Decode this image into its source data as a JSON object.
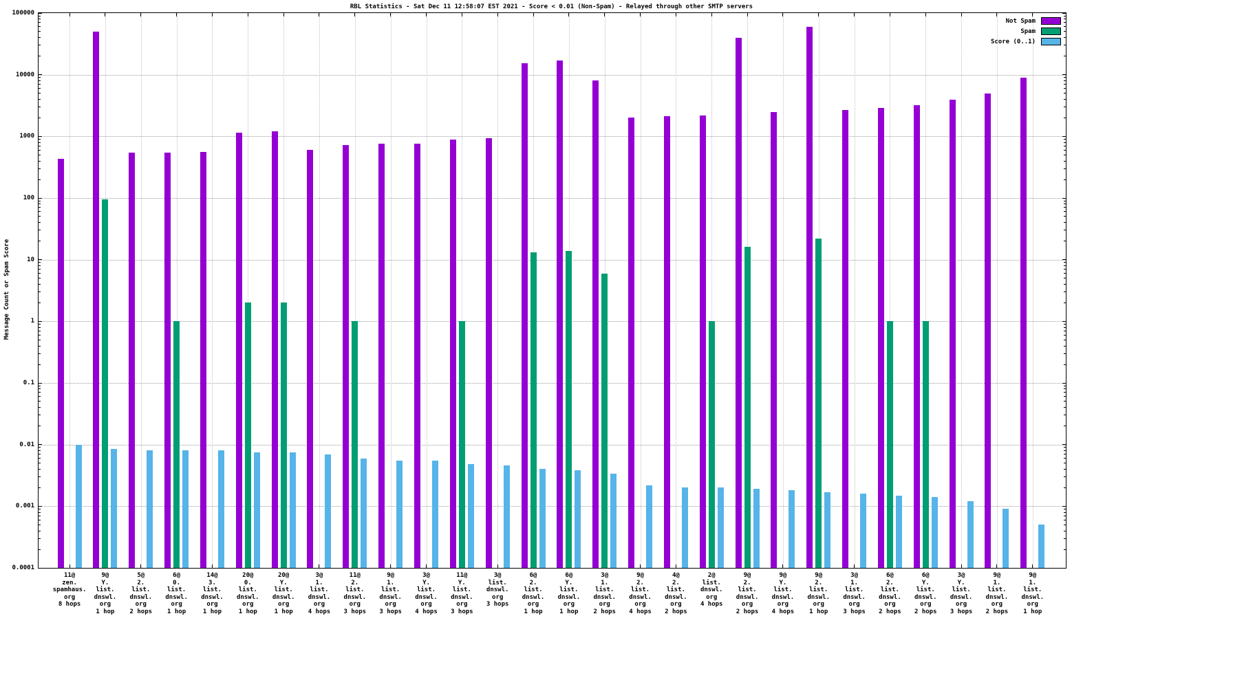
{
  "chart_data": {
    "type": "bar",
    "title": "RBL Statistics - Sat Dec 11 12:58:07 EST 2021 - Score < 0.01 (Non-Spam) - Relayed through other SMTP servers",
    "ylabel": "Message Count or Spam Score",
    "y_scale": "log",
    "ylim": [
      0.0001,
      100000
    ],
    "y_ticks": [
      "100000",
      "10000",
      "1000",
      "100",
      "10",
      "1",
      "0.1",
      "0.01",
      "0.001",
      "0.0001"
    ],
    "grid": true,
    "legend_position": "top-right",
    "legend": [
      {
        "label": "Not Spam",
        "color": "#9400D3"
      },
      {
        "label": "Spam",
        "color": "#009E73"
      },
      {
        "label": "Score (0..1)",
        "color": "#56B4E9"
      }
    ],
    "categories": [
      [
        "11@",
        "zen.",
        "spamhaus.",
        "org",
        "8 hops"
      ],
      [
        "9@",
        "Y.",
        "list.",
        "dnswl.",
        "org",
        "1 hop"
      ],
      [
        "5@",
        "2.",
        "list.",
        "dnswl.",
        "org",
        "2 hops"
      ],
      [
        "6@",
        "0.",
        "list.",
        "dnswl.",
        "org",
        "1 hop"
      ],
      [
        "14@",
        "3.",
        "list.",
        "dnswl.",
        "org",
        "1 hop"
      ],
      [
        "20@",
        "0.",
        "list.",
        "dnswl.",
        "org",
        "1 hop"
      ],
      [
        "20@",
        "Y.",
        "list.",
        "dnswl.",
        "org",
        "1 hop"
      ],
      [
        "3@",
        "1.",
        "list.",
        "dnswl.",
        "org",
        "4 hops"
      ],
      [
        "11@",
        "2.",
        "list.",
        "dnswl.",
        "org",
        "3 hops"
      ],
      [
        "9@",
        "1.",
        "list.",
        "dnswl.",
        "org",
        "3 hops"
      ],
      [
        "3@",
        "Y.",
        "list.",
        "dnswl.",
        "org",
        "4 hops"
      ],
      [
        "11@",
        "Y.",
        "list.",
        "dnswl.",
        "org",
        "3 hops"
      ],
      [
        "3@",
        "list.",
        "dnswl.",
        "org",
        "3 hops"
      ],
      [
        "6@",
        "2.",
        "list.",
        "dnswl.",
        "org",
        "1 hop"
      ],
      [
        "6@",
        "Y.",
        "list.",
        "dnswl.",
        "org",
        "1 hop"
      ],
      [
        "3@",
        "1.",
        "list.",
        "dnswl.",
        "org",
        "2 hops"
      ],
      [
        "9@",
        "2.",
        "list.",
        "dnswl.",
        "org",
        "4 hops"
      ],
      [
        "4@",
        "2.",
        "list.",
        "dnswl.",
        "org",
        "2 hops"
      ],
      [
        "2@",
        "list.",
        "dnswl.",
        "org",
        "4 hops"
      ],
      [
        "9@",
        "2.",
        "list.",
        "dnswl.",
        "org",
        "2 hops"
      ],
      [
        "9@",
        "Y.",
        "list.",
        "dnswl.",
        "org",
        "4 hops"
      ],
      [
        "9@",
        "2.",
        "list.",
        "dnswl.",
        "org",
        "1 hop"
      ],
      [
        "3@",
        "1.",
        "list.",
        "dnswl.",
        "org",
        "3 hops"
      ],
      [
        "6@",
        "2.",
        "list.",
        "dnswl.",
        "org",
        "2 hops"
      ],
      [
        "6@",
        "Y.",
        "list.",
        "dnswl.",
        "org",
        "2 hops"
      ],
      [
        "3@",
        "Y.",
        "list.",
        "dnswl.",
        "org",
        "3 hops"
      ],
      [
        "9@",
        "1.",
        "list.",
        "dnswl.",
        "org",
        "2 hops"
      ],
      [
        "9@",
        "1.",
        "list.",
        "dnswl.",
        "org",
        "1 hop"
      ]
    ],
    "series": [
      {
        "name": "Not Spam",
        "key": "not-spam",
        "color": "#9400D3",
        "values": [
          430,
          50000,
          550,
          550,
          560,
          1150,
          1200,
          600,
          730,
          760,
          770,
          880,
          930,
          15500,
          17000,
          8000,
          2000,
          2100,
          2200,
          40000,
          2500,
          60000,
          2700,
          2900,
          3200,
          3900,
          5000,
          9000
        ]
      },
      {
        "name": "Spam",
        "key": "spam",
        "color": "#009E73",
        "values": [
          null,
          95,
          null,
          1,
          null,
          2,
          2,
          null,
          1,
          null,
          null,
          1,
          null,
          13,
          14,
          6,
          null,
          null,
          1,
          16,
          null,
          22,
          null,
          1,
          1,
          null,
          null,
          null
        ]
      },
      {
        "name": "Score (0..1)",
        "key": "score",
        "color": "#56B4E9",
        "values": [
          0.01,
          0.0085,
          0.008,
          0.008,
          0.008,
          0.0075,
          0.0075,
          0.007,
          0.006,
          0.0055,
          0.0055,
          0.0048,
          0.0046,
          0.004,
          0.0038,
          0.0034,
          0.0022,
          0.002,
          0.002,
          0.0019,
          0.0018,
          0.0017,
          0.0016,
          0.0015,
          0.0014,
          0.0012,
          0.0009,
          0.0005
        ]
      }
    ]
  }
}
